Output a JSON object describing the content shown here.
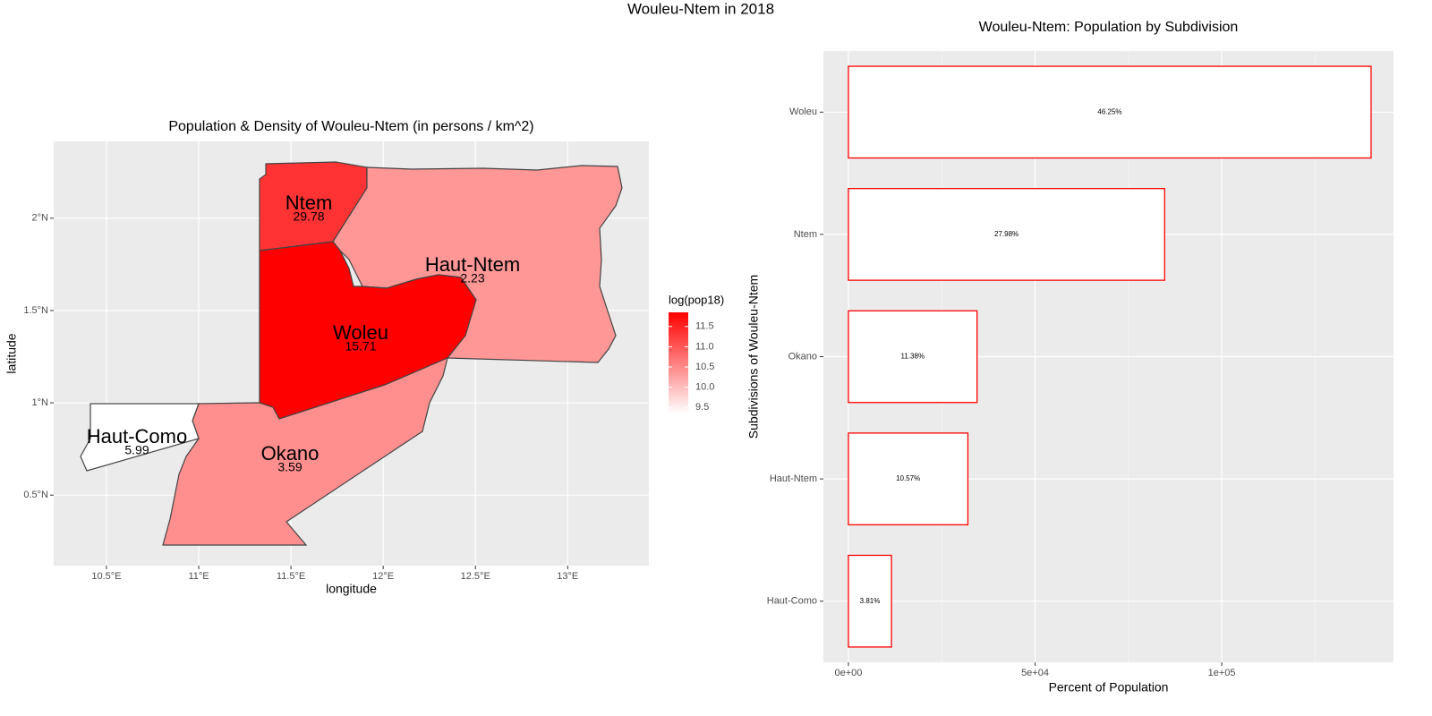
{
  "title": "Wouleu-Ntem in 2018",
  "chart_data": [
    {
      "type": "map",
      "title": "Population & Density of Wouleu-Ntem (in persons / km^2)",
      "x_label": "longitude",
      "y_label": "latitude",
      "xlim": [
        10.214,
        13.44
      ],
      "ylim": [
        0.118,
        2.416
      ],
      "xticks": [
        {
          "value": 10.5,
          "label": "10.5°E"
        },
        {
          "value": 11,
          "label": "11°E"
        },
        {
          "value": 11.5,
          "label": "11.5°E"
        },
        {
          "value": 12,
          "label": "12°E"
        },
        {
          "value": 12.5,
          "label": "12.5°E"
        },
        {
          "value": 13,
          "label": "13°E"
        }
      ],
      "yticks": [
        {
          "value": 0.5,
          "label": "0.5°N"
        },
        {
          "value": 1,
          "label": "1°N"
        },
        {
          "value": 1.5,
          "label": "1.5°N"
        },
        {
          "value": 2,
          "label": "2°N"
        }
      ],
      "grid": true,
      "legend_title": "log(pop18)",
      "colorscale": [
        "#ffffff",
        "#ff0000"
      ],
      "clim": [
        9.35,
        11.85
      ],
      "legend_ticks": [
        {
          "value": 9.5,
          "label": "9.5"
        },
        {
          "value": 10,
          "label": "10.0"
        },
        {
          "value": 10.5,
          "label": "10.5"
        },
        {
          "value": 11,
          "label": "11.0"
        },
        {
          "value": 11.5,
          "label": "11.5"
        }
      ],
      "regions": [
        {
          "name": "Ntem",
          "density": 29.78,
          "log_pop": 11.35
        },
        {
          "name": "Haut-Ntem",
          "density": 2.23,
          "log_pop": 10.37
        },
        {
          "name": "Woleu",
          "density": 15.71,
          "log_pop": 11.85
        },
        {
          "name": "Okano",
          "density": 3.59,
          "log_pop": 10.45
        },
        {
          "name": "Haut-Como",
          "density": 5.99,
          "log_pop": 9.35
        }
      ]
    },
    {
      "type": "hbar",
      "title": "Wouleu-Ntem: Population by Subdivision",
      "x_label": "Percent of Population",
      "y_label": "Subdivisions of Wouleu-Ntem",
      "categories": [
        "Woleu",
        "Ntem",
        "Okano",
        "Haut-Ntem",
        "Haut-Como"
      ],
      "values": [
        140000,
        84700,
        34450,
        32000,
        11530
      ],
      "bar_labels": [
        "46.25%",
        "27.98%",
        "11.38%",
        "10.57%",
        "3.81%"
      ],
      "color": "#ff0000",
      "xlim": [
        -6700,
        146000
      ],
      "xticks": [
        {
          "value": 0,
          "label": "0e+00"
        },
        {
          "value": 50000,
          "label": "5e+04"
        },
        {
          "value": 100000,
          "label": "1e+05"
        }
      ],
      "xminorticks": [
        25000,
        75000,
        125000
      ],
      "grid": true
    }
  ]
}
